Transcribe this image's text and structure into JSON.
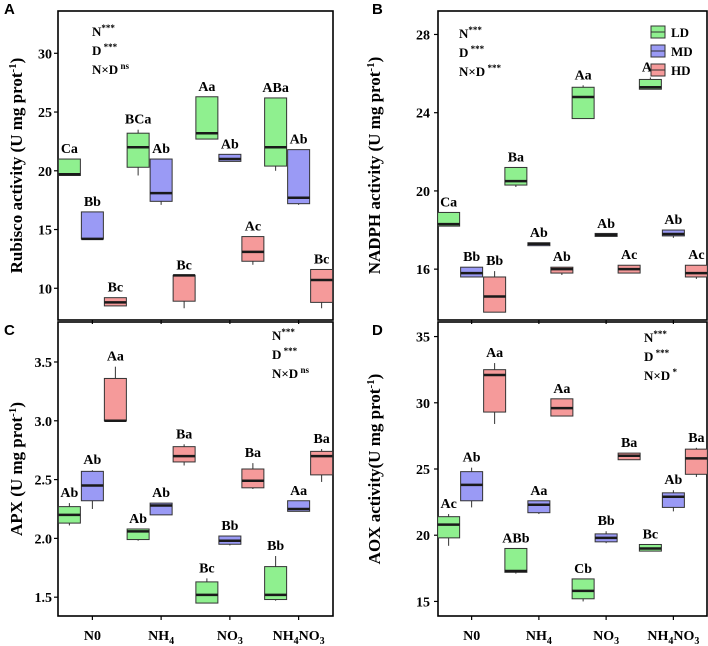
{
  "colors": {
    "LD": "#8ff08f",
    "MD": "#9a9af5",
    "HD": "#f59a9a",
    "median": "#1a1a1a",
    "axis": "#000000"
  },
  "legend": {
    "entries": [
      "LD",
      "MD",
      "HD"
    ]
  },
  "x_categories": [
    "N0",
    "NH4",
    "NO3",
    "NH4NO3"
  ],
  "chart_data": [
    {
      "type": "box",
      "panel_letter": "A",
      "ylabel": "Rubisco activity (U mg prot",
      "ylabel_sup": "-1",
      "ylabel_end": ")",
      "ylim": [
        7.3,
        33.6
      ],
      "yticks": [
        10,
        15,
        20,
        25,
        30
      ],
      "stats": [
        {
          "main": "N",
          "sig": "***"
        },
        {
          "main": "D",
          "sig": " ***"
        },
        {
          "main": "N×D",
          "sig": " ns"
        }
      ],
      "series": [
        {
          "name": "LD",
          "boxes": [
            {
              "min": 19.6,
              "q1": 19.6,
              "median": 19.7,
              "q3": 21.0,
              "max": 21.0,
              "label": "Ca"
            },
            {
              "min": 19.6,
              "q1": 20.3,
              "median": 22.0,
              "q3": 23.2,
              "max": 23.5,
              "label": "BCa"
            },
            {
              "min": 22.7,
              "q1": 22.7,
              "median": 23.2,
              "q3": 26.3,
              "max": 26.3,
              "label": "Aa"
            },
            {
              "min": 20.0,
              "q1": 20.4,
              "median": 22.0,
              "q3": 26.2,
              "max": 26.2,
              "label": "ABa"
            }
          ]
        },
        {
          "name": "MD",
          "boxes": [
            {
              "min": 14.2,
              "q1": 14.2,
              "median": 14.2,
              "q3": 16.5,
              "max": 16.5,
              "label": "Bb"
            },
            {
              "min": 17.1,
              "q1": 17.4,
              "median": 18.1,
              "q3": 21.0,
              "max": 21.0,
              "label": "Ab"
            },
            {
              "min": 20.8,
              "q1": 20.8,
              "median": 21.0,
              "q3": 21.4,
              "max": 21.4,
              "label": "Ab"
            },
            {
              "min": 17.1,
              "q1": 17.2,
              "median": 17.7,
              "q3": 21.8,
              "max": 21.8,
              "label": "Ab"
            }
          ]
        },
        {
          "name": "HD",
          "boxes": [
            {
              "min": 8.5,
              "q1": 8.5,
              "median": 8.8,
              "q3": 9.2,
              "max": 9.2,
              "label": "Bc"
            },
            {
              "min": 8.3,
              "q1": 8.9,
              "median": 11.1,
              "q3": 11.1,
              "max": 11.1,
              "label": "Bc"
            },
            {
              "min": 12.0,
              "q1": 12.3,
              "median": 13.1,
              "q3": 14.4,
              "max": 14.4,
              "label": "Ac"
            },
            {
              "min": 8.3,
              "q1": 8.8,
              "median": 10.7,
              "q3": 11.6,
              "max": 11.6,
              "label": "Bc"
            }
          ]
        }
      ]
    },
    {
      "type": "box",
      "panel_letter": "B",
      "ylabel": "NADPH activity (U mg prot",
      "ylabel_sup": "-1",
      "ylabel_end": ")",
      "ylim": [
        13.4,
        29.2
      ],
      "yticks": [
        16,
        20,
        24,
        28
      ],
      "stats": [
        {
          "main": "N",
          "sig": "***"
        },
        {
          "main": "D",
          "sig": " ***"
        },
        {
          "main": "N×D",
          "sig": " ***"
        }
      ],
      "series": [
        {
          "name": "LD",
          "boxes": [
            {
              "min": 18.2,
              "q1": 18.2,
              "median": 18.3,
              "q3": 18.9,
              "max": 18.9,
              "label": "Ca"
            },
            {
              "min": 20.2,
              "q1": 20.3,
              "median": 20.5,
              "q3": 21.2,
              "max": 21.2,
              "label": "Ba"
            },
            {
              "min": 23.7,
              "q1": 23.7,
              "median": 24.8,
              "q3": 25.3,
              "max": 25.4,
              "label": "Aa"
            },
            {
              "min": 25.2,
              "q1": 25.2,
              "median": 25.3,
              "q3": 25.7,
              "max": 25.8,
              "label": "Aa"
            }
          ]
        },
        {
          "name": "MD",
          "boxes": [
            {
              "min": 15.6,
              "q1": 15.6,
              "median": 15.8,
              "q3": 16.1,
              "max": 16.1,
              "label": "Bb"
            },
            {
              "min": 17.2,
              "q1": 17.2,
              "median": 17.3,
              "q3": 17.35,
              "max": 17.35,
              "label": "Ab"
            },
            {
              "min": 17.7,
              "q1": 17.7,
              "median": 17.75,
              "q3": 17.8,
              "max": 17.8,
              "label": "Ab"
            },
            {
              "min": 17.6,
              "q1": 17.7,
              "median": 17.8,
              "q3": 18.0,
              "max": 18.0,
              "label": "Ab"
            }
          ]
        },
        {
          "name": "HD",
          "boxes": [
            {
              "min": 13.8,
              "q1": 13.8,
              "median": 14.6,
              "q3": 15.6,
              "max": 15.9,
              "label": "Bb"
            },
            {
              "min": 15.7,
              "q1": 15.8,
              "median": 16.0,
              "q3": 16.1,
              "max": 16.1,
              "label": "Ab"
            },
            {
              "min": 15.8,
              "q1": 15.8,
              "median": 16.0,
              "q3": 16.2,
              "max": 16.2,
              "label": "Ac"
            },
            {
              "min": 15.5,
              "q1": 15.6,
              "median": 15.8,
              "q3": 16.2,
              "max": 16.2,
              "label": "Ac"
            }
          ]
        }
      ]
    },
    {
      "type": "box",
      "panel_letter": "C",
      "ylabel": "APX (U mg prot",
      "ylabel_sup": "-1",
      "ylabel_end": ")",
      "ylim": [
        1.34,
        3.84
      ],
      "yticks": [
        1.5,
        2.0,
        2.5,
        3.0,
        3.5
      ],
      "stats": [
        {
          "main": "N",
          "sig": "***"
        },
        {
          "main": "D",
          "sig": " ***"
        },
        {
          "main": "N×D",
          "sig": " ns"
        }
      ],
      "series": [
        {
          "name": "LD",
          "boxes": [
            {
              "min": 2.11,
              "q1": 2.13,
              "median": 2.2,
              "q3": 2.27,
              "max": 2.3,
              "label": "Ab"
            },
            {
              "min": 1.98,
              "q1": 1.99,
              "median": 2.06,
              "q3": 2.08,
              "max": 2.08,
              "label": "Ab"
            },
            {
              "min": 1.45,
              "q1": 1.45,
              "median": 1.52,
              "q3": 1.63,
              "max": 1.66,
              "label": "Bc"
            },
            {
              "min": 1.47,
              "q1": 1.48,
              "median": 1.52,
              "q3": 1.76,
              "max": 1.85,
              "label": "Bb"
            }
          ]
        },
        {
          "name": "MD",
          "boxes": [
            {
              "min": 2.25,
              "q1": 2.32,
              "median": 2.45,
              "q3": 2.57,
              "max": 2.58,
              "label": "Ab"
            },
            {
              "min": 2.2,
              "q1": 2.2,
              "median": 2.28,
              "q3": 2.3,
              "max": 2.3,
              "label": "Ab"
            },
            {
              "min": 1.94,
              "q1": 1.95,
              "median": 1.98,
              "q3": 2.02,
              "max": 2.02,
              "label": "Bb"
            },
            {
              "min": 2.23,
              "q1": 2.23,
              "median": 2.25,
              "q3": 2.32,
              "max": 2.32,
              "label": "Aa"
            }
          ]
        },
        {
          "name": "HD",
          "boxes": [
            {
              "min": 3.0,
              "q1": 3.0,
              "median": 3.0,
              "q3": 3.36,
              "max": 3.46,
              "label": "Aa"
            },
            {
              "min": 2.62,
              "q1": 2.65,
              "median": 2.7,
              "q3": 2.78,
              "max": 2.8,
              "label": "Ba"
            },
            {
              "min": 2.42,
              "q1": 2.43,
              "median": 2.49,
              "q3": 2.59,
              "max": 2.64,
              "label": "Ba"
            },
            {
              "min": 2.48,
              "q1": 2.54,
              "median": 2.7,
              "q3": 2.74,
              "max": 2.76,
              "label": "Ba"
            }
          ]
        }
      ]
    },
    {
      "type": "box",
      "panel_letter": "D",
      "ylabel": "AOX activity(U mg prot",
      "ylabel_sup": "-1",
      "ylabel_end": ")",
      "ylim": [
        13.9,
        36.1
      ],
      "yticks": [
        15,
        20,
        25,
        30,
        35
      ],
      "stats": [
        {
          "main": "N",
          "sig": "***"
        },
        {
          "main": "D",
          "sig": " ***"
        },
        {
          "main": "N×D",
          "sig": " *"
        }
      ],
      "series": [
        {
          "name": "LD",
          "boxes": [
            {
              "min": 19.2,
              "q1": 19.8,
              "median": 20.8,
              "q3": 21.4,
              "max": 21.6,
              "label": "Ac"
            },
            {
              "min": 17.1,
              "q1": 17.2,
              "median": 17.3,
              "q3": 19.0,
              "max": 19.0,
              "label": "ABb"
            },
            {
              "min": 15.0,
              "q1": 15.2,
              "median": 15.8,
              "q3": 16.7,
              "max": 16.7,
              "label": "Cb"
            },
            {
              "min": 18.8,
              "q1": 18.8,
              "median": 19.0,
              "q3": 19.3,
              "max": 19.3,
              "label": "Bc"
            }
          ]
        },
        {
          "name": "MD",
          "boxes": [
            {
              "min": 22.1,
              "q1": 22.6,
              "median": 23.8,
              "q3": 24.8,
              "max": 25.1,
              "label": "Ab"
            },
            {
              "min": 21.6,
              "q1": 21.7,
              "median": 22.3,
              "q3": 22.6,
              "max": 22.6,
              "label": "Aa"
            },
            {
              "min": 19.4,
              "q1": 19.5,
              "median": 19.8,
              "q3": 20.1,
              "max": 20.3,
              "label": "Bb"
            },
            {
              "min": 21.8,
              "q1": 22.1,
              "median": 22.9,
              "q3": 23.2,
              "max": 23.4,
              "label": "Ab"
            }
          ]
        },
        {
          "name": "HD",
          "boxes": [
            {
              "min": 28.4,
              "q1": 29.3,
              "median": 32.1,
              "q3": 32.5,
              "max": 33.0,
              "label": "Aa"
            },
            {
              "min": 29.0,
              "q1": 29.0,
              "median": 29.6,
              "q3": 30.3,
              "max": 30.3,
              "label": "Aa"
            },
            {
              "min": 25.7,
              "q1": 25.7,
              "median": 26.0,
              "q3": 26.2,
              "max": 26.2,
              "label": "Ba"
            },
            {
              "min": 24.4,
              "q1": 24.6,
              "median": 25.8,
              "q3": 26.5,
              "max": 26.6,
              "label": "Ba"
            }
          ]
        }
      ]
    }
  ]
}
